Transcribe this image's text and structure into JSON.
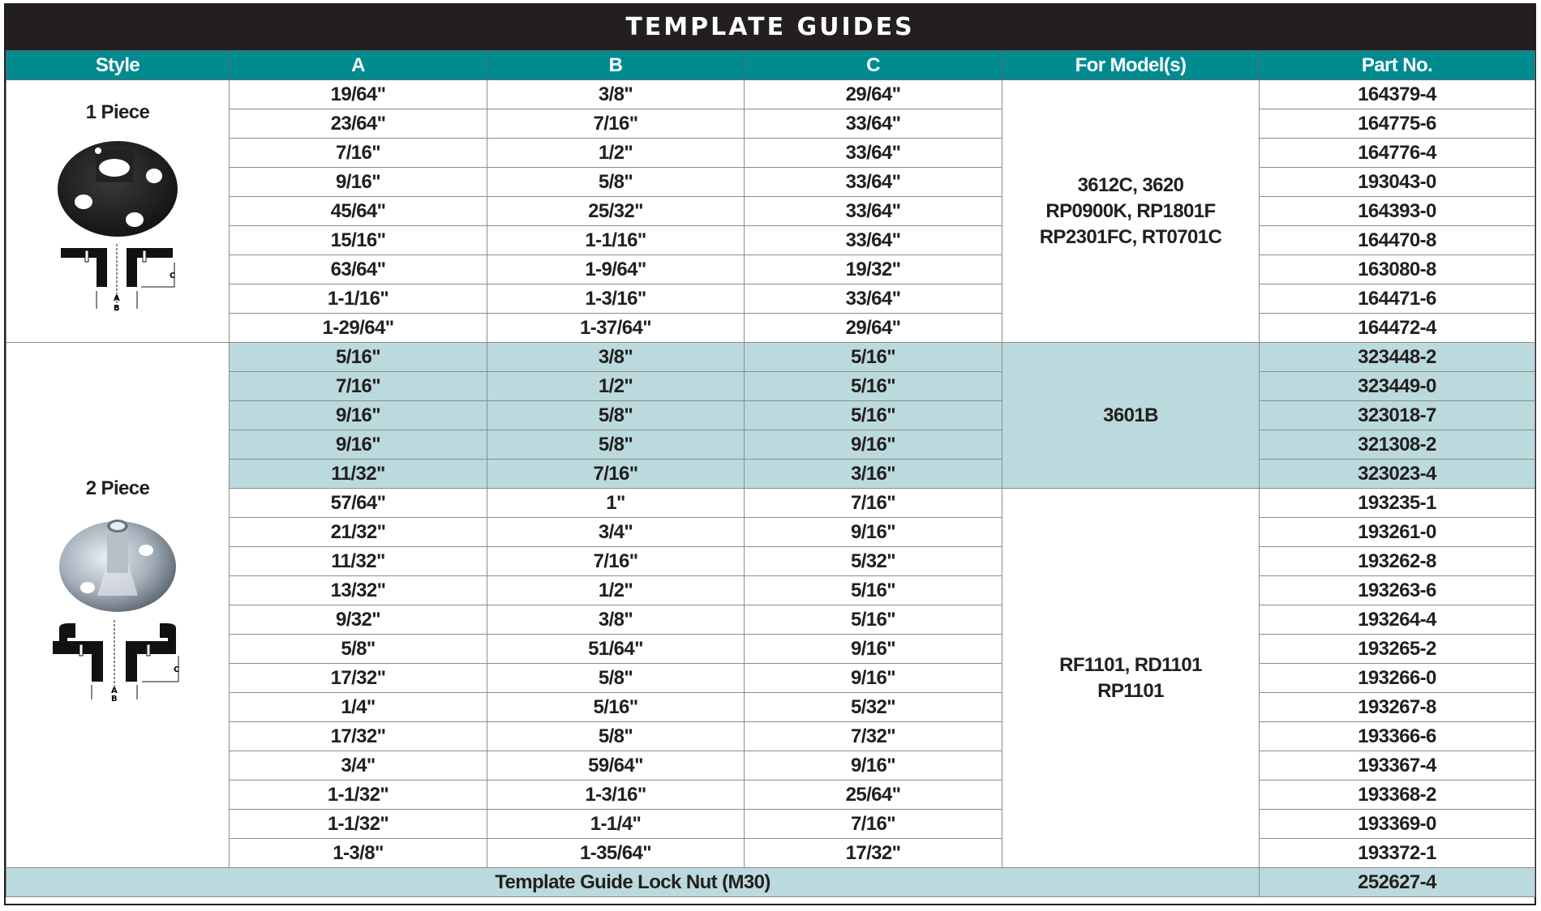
{
  "title": "TEMPLATE GUIDES",
  "headers": [
    "Style",
    "A",
    "B",
    "C",
    "For Model(s)",
    "Part No."
  ],
  "colors": {
    "title_bar": "#231f20",
    "header": "#008b91",
    "highlight": "#bbdadd"
  },
  "styles": [
    {
      "label": "1 Piece",
      "image": "black-one-piece-template-guide",
      "diagram": "one-piece-cross-section-diagram",
      "dim_labels": [
        "A",
        "B",
        "C"
      ]
    },
    {
      "label": "2 Piece",
      "image": "silver-two-piece-template-guide",
      "diagram": "two-piece-cross-section-diagram",
      "dim_labels": [
        "A",
        "B",
        "C"
      ]
    }
  ],
  "models": [
    "3612C, 3620\nRP0900K, RP1801F\nRP2301FC, RT0701C",
    "3601B",
    "RF1101, RD1101\nRP1101"
  ],
  "rows": [
    {
      "a": "19/64\"",
      "b": "3/8\"",
      "c": "29/64\"",
      "part": "164379-4"
    },
    {
      "a": "23/64\"",
      "b": "7/16\"",
      "c": "33/64\"",
      "part": "164775-6"
    },
    {
      "a": "7/16\"",
      "b": "1/2\"",
      "c": "33/64\"",
      "part": "164776-4"
    },
    {
      "a": "9/16\"",
      "b": "5/8\"",
      "c": "33/64\"",
      "part": "193043-0"
    },
    {
      "a": "45/64\"",
      "b": "25/32\"",
      "c": "33/64\"",
      "part": "164393-0"
    },
    {
      "a": "15/16\"",
      "b": "1-1/16\"",
      "c": "33/64\"",
      "part": "164470-8"
    },
    {
      "a": "63/64\"",
      "b": "1-9/64\"",
      "c": "19/32\"",
      "part": "163080-8"
    },
    {
      "a": "1-1/16\"",
      "b": "1-3/16\"",
      "c": "33/64\"",
      "part": "164471-6"
    },
    {
      "a": "1-29/64\"",
      "b": "1-37/64\"",
      "c": "29/64\"",
      "part": "164472-4"
    },
    {
      "a": "5/16\"",
      "b": "3/8\"",
      "c": "5/16\"",
      "part": "323448-2"
    },
    {
      "a": "7/16\"",
      "b": "1/2\"",
      "c": "5/16\"",
      "part": "323449-0"
    },
    {
      "a": "9/16\"",
      "b": "5/8\"",
      "c": "5/16\"",
      "part": "323018-7"
    },
    {
      "a": "9/16\"",
      "b": "5/8\"",
      "c": "9/16\"",
      "part": "321308-2"
    },
    {
      "a": "11/32\"",
      "b": "7/16\"",
      "c": "3/16\"",
      "part": "323023-4"
    },
    {
      "a": "57/64\"",
      "b": "1\"",
      "c": "7/16\"",
      "part": "193235-1"
    },
    {
      "a": "21/32\"",
      "b": "3/4\"",
      "c": "9/16\"",
      "part": "193261-0"
    },
    {
      "a": "11/32\"",
      "b": "7/16\"",
      "c": "5/32\"",
      "part": "193262-8"
    },
    {
      "a": "13/32\"",
      "b": "1/2\"",
      "c": "5/16\"",
      "part": "193263-6"
    },
    {
      "a": "9/32\"",
      "b": "3/8\"",
      "c": "5/16\"",
      "part": "193264-4"
    },
    {
      "a": "5/8\"",
      "b": "51/64\"",
      "c": "9/16\"",
      "part": "193265-2"
    },
    {
      "a": "17/32\"",
      "b": "5/8\"",
      "c": "9/16\"",
      "part": "193266-0"
    },
    {
      "a": "1/4\"",
      "b": "5/16\"",
      "c": "5/32\"",
      "part": "193267-8"
    },
    {
      "a": "17/32\"",
      "b": "5/8\"",
      "c": "7/32\"",
      "part": "193366-6"
    },
    {
      "a": "3/4\"",
      "b": "59/64\"",
      "c": "9/16\"",
      "part": "193367-4"
    },
    {
      "a": "1-1/32\"",
      "b": "1-3/16\"",
      "c": "25/64\"",
      "part": "193368-2"
    },
    {
      "a": "1-1/32\"",
      "b": "1-1/4\"",
      "c": "7/16\"",
      "part": "193369-0"
    },
    {
      "a": "1-3/8\"",
      "b": "1-35/64\"",
      "c": "17/32\"",
      "part": "193372-1"
    }
  ],
  "footer": {
    "label": "Template Guide Lock Nut (M30)",
    "part": "252627-4"
  }
}
